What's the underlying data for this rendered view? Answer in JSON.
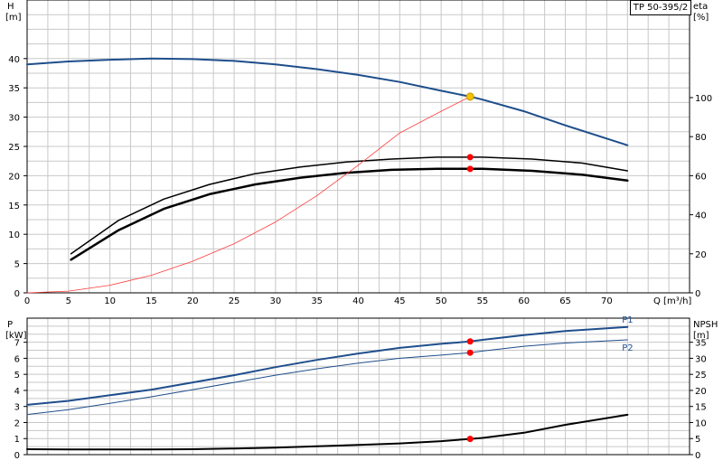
{
  "model": "TP 50-395/2",
  "chart_data": [
    {
      "type": "line",
      "panel": "upper",
      "title": "",
      "xlabel": "Q [m³/h]",
      "xlim": [
        0,
        80
      ],
      "x_ticks": [
        0,
        5,
        10,
        15,
        20,
        25,
        30,
        35,
        40,
        45,
        50,
        55,
        60,
        65,
        70
      ],
      "left_axis": {
        "label_line1": "H",
        "label_line2": "[m]",
        "ylim": [
          0,
          50
        ],
        "ticks": [
          0,
          5,
          10,
          15,
          20,
          25,
          30,
          35,
          40
        ]
      },
      "right_axis": {
        "label_line1": "eta",
        "label_line2": "[%]",
        "ylim": [
          0,
          150
        ],
        "ticks": [
          0,
          20,
          40,
          60,
          80,
          100
        ]
      },
      "grid": true,
      "series": [
        {
          "axis": "left",
          "color": "#1f4e8c",
          "width": 2,
          "x": [
            0,
            5,
            10,
            15,
            20,
            25,
            30,
            35,
            40,
            45,
            50,
            53.5,
            55,
            60,
            65,
            72.5
          ],
          "y": [
            39.0,
            39.5,
            39.8,
            40.0,
            39.9,
            39.6,
            39.0,
            38.2,
            37.2,
            36.0,
            34.5,
            33.5,
            33.0,
            31.0,
            28.6,
            25.2
          ]
        },
        {
          "axis": "right",
          "color": "#000000",
          "width": 1.5,
          "x": [
            5.3,
            11,
            16.5,
            22,
            27.5,
            33,
            38.5,
            44,
            49.5,
            53.5,
            55,
            61,
            67,
            72.5
          ],
          "y": [
            20,
            37,
            48,
            55.5,
            61,
            64.5,
            67,
            68.5,
            69.5,
            69.5,
            69.5,
            68.5,
            66.5,
            62.5
          ]
        },
        {
          "axis": "right",
          "color": "#000000",
          "width": 2.5,
          "x": [
            5.3,
            11,
            16.5,
            22,
            27.5,
            33,
            38.5,
            44,
            49.5,
            53.5,
            55,
            61,
            67,
            72.5
          ],
          "y": [
            17,
            32,
            43,
            50.5,
            55.5,
            59,
            61.5,
            63,
            63.5,
            63.5,
            63.5,
            62.5,
            60.5,
            57.5
          ]
        },
        {
          "axis": "left",
          "color": "#ff3b3b",
          "width": 0.8,
          "x": [
            0,
            5,
            10,
            15,
            20,
            25,
            30,
            35,
            40,
            45,
            50,
            53.5
          ],
          "y": [
            0,
            0.3,
            1.3,
            3.0,
            5.4,
            8.4,
            12.1,
            16.6,
            21.8,
            27.3,
            31.0,
            33.5
          ]
        }
      ],
      "markers": [
        {
          "axis": "left",
          "x": 53.5,
          "y": 33.5,
          "color": "#f2c200",
          "r": 4
        },
        {
          "axis": "right",
          "x": 53.5,
          "y": 69.5,
          "color": "#ff0000",
          "r": 3.5
        },
        {
          "axis": "right",
          "x": 53.5,
          "y": 63.5,
          "color": "#ff0000",
          "r": 3.5
        }
      ]
    },
    {
      "type": "line",
      "panel": "lower",
      "title": "",
      "xlabel": "",
      "xlim": [
        0,
        80
      ],
      "left_axis": {
        "label_line1": "P",
        "label_line2": "[kW]",
        "ylim": [
          0,
          8.5
        ],
        "ticks": [
          0,
          1,
          2,
          3,
          4,
          5,
          6,
          7
        ]
      },
      "right_axis": {
        "label_line1": "NPSH",
        "label_line2": "[m]",
        "ylim": [
          0,
          42.5
        ],
        "ticks": [
          0,
          5,
          10,
          15,
          20,
          25,
          30,
          35
        ]
      },
      "grid": true,
      "series": [
        {
          "name": "P1",
          "axis": "left",
          "color": "#1f4e8c",
          "width": 2,
          "x": [
            0,
            5,
            10,
            15,
            20,
            25,
            30,
            35,
            40,
            45,
            50,
            53.5,
            55,
            60,
            65,
            72.5
          ],
          "y": [
            3.1,
            3.35,
            3.7,
            4.05,
            4.5,
            4.95,
            5.45,
            5.9,
            6.3,
            6.65,
            6.9,
            7.05,
            7.15,
            7.45,
            7.7,
            7.95
          ]
        },
        {
          "name": "P2",
          "axis": "left",
          "color": "#1f4e8c",
          "width": 1,
          "x": [
            0,
            5,
            10,
            15,
            20,
            25,
            30,
            35,
            40,
            45,
            50,
            53.5,
            55,
            60,
            65,
            72.5
          ],
          "y": [
            2.5,
            2.8,
            3.2,
            3.6,
            4.05,
            4.5,
            4.95,
            5.35,
            5.7,
            6.0,
            6.2,
            6.35,
            6.45,
            6.75,
            6.95,
            7.15
          ]
        },
        {
          "axis": "right",
          "color": "#000000",
          "width": 2,
          "x": [
            0,
            5,
            10,
            15,
            20,
            25,
            30,
            35,
            40,
            45,
            50,
            53.5,
            55,
            60,
            65,
            72.5
          ],
          "y": [
            1.7,
            1.6,
            1.6,
            1.6,
            1.7,
            1.9,
            2.2,
            2.6,
            3.0,
            3.5,
            4.2,
            4.9,
            5.2,
            6.8,
            9.3,
            12.4
          ]
        }
      ],
      "markers": [
        {
          "axis": "left",
          "x": 53.5,
          "y": 7.05,
          "color": "#ff0000",
          "r": 3.5
        },
        {
          "axis": "left",
          "x": 53.5,
          "y": 6.35,
          "color": "#ff0000",
          "r": 3.5
        },
        {
          "axis": "right",
          "x": 53.5,
          "y": 4.9,
          "color": "#ff0000",
          "r": 3.5
        }
      ]
    }
  ]
}
